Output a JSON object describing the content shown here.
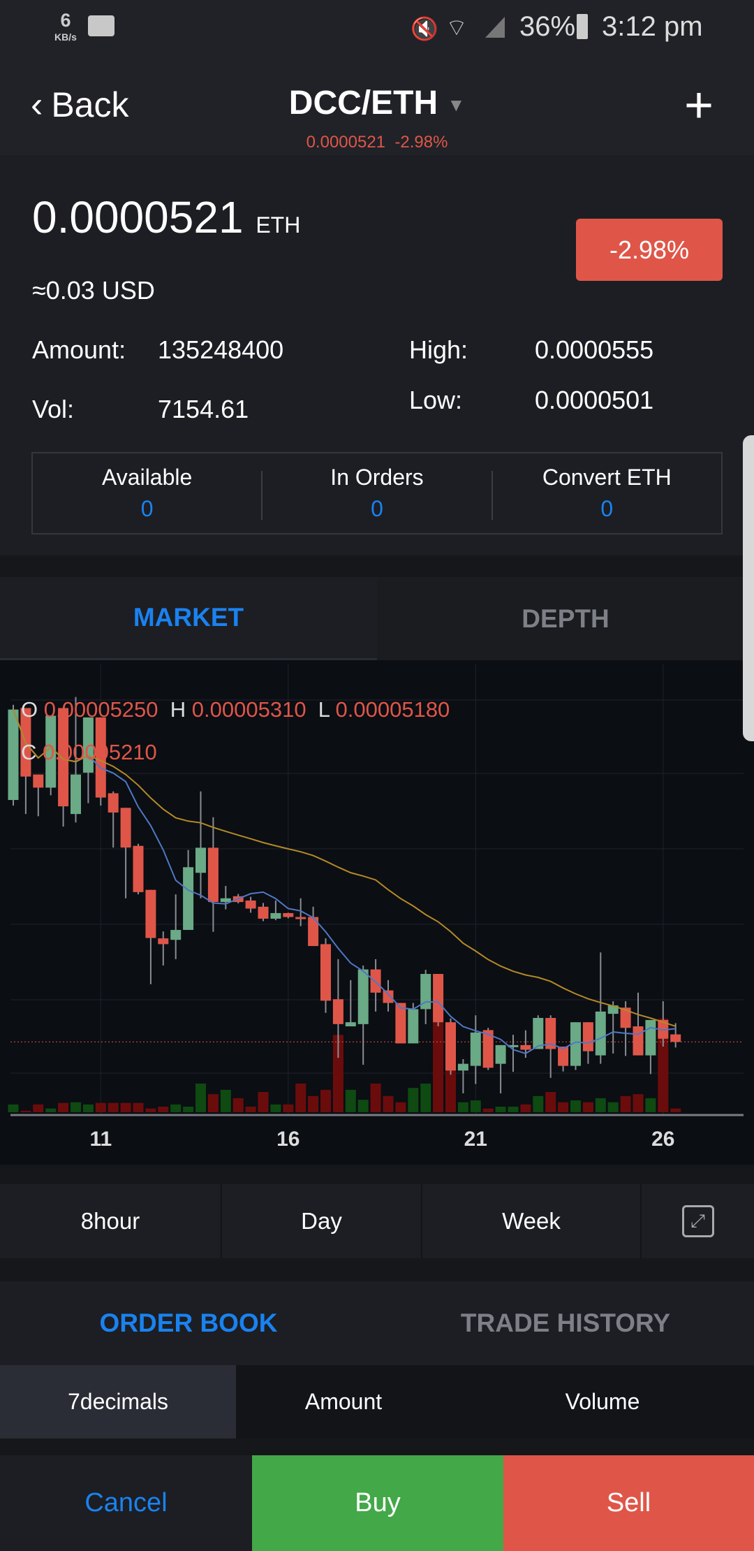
{
  "status_bar": {
    "net_speed": "6",
    "net_unit": "KB/s",
    "battery": "36%",
    "time": "3:12 pm",
    "icons": [
      "message-icon",
      "mute-icon",
      "wifi-icon",
      "signal-icon",
      "battery-icon"
    ]
  },
  "nav": {
    "back_label": "Back",
    "pair": "DCC/ETH",
    "sub_price": "0.0000521",
    "sub_change": "-2.98%"
  },
  "ticker": {
    "price": "0.0000521",
    "unit": "ETH",
    "usd": "≈0.03 USD",
    "change": "-2.98%",
    "amount_label": "Amount:",
    "amount": "135248400",
    "vol_label": "Vol:",
    "vol": "7154.61",
    "high_label": "High:",
    "high": "0.0000555",
    "low_label": "Low:",
    "low": "0.0000501"
  },
  "balances": [
    {
      "label": "Available",
      "value": "0"
    },
    {
      "label": "In Orders",
      "value": "0"
    },
    {
      "label": "Convert ETH",
      "value": "0"
    }
  ],
  "chart_tabs": [
    {
      "label": "MARKET",
      "active": true
    },
    {
      "label": "DEPTH",
      "active": false
    }
  ],
  "ohlc": {
    "o_label": "O",
    "o": "0.00005250",
    "h_label": "H",
    "h": "0.00005310",
    "l_label": "L",
    "l": "0.00005180",
    "c_label": "C",
    "c": "0.00005210"
  },
  "chart_data": {
    "type": "candlestick",
    "interval": "8hour",
    "x_ticks": [
      {
        "label": "11",
        "candle_index": 7
      },
      {
        "label": "16",
        "candle_index": 22
      },
      {
        "label": "21",
        "candle_index": 37
      },
      {
        "label": "26",
        "candle_index": 52
      }
    ],
    "last_price": 5.21e-05,
    "moving_averages": [
      {
        "period": 7,
        "color": "#4f78c4"
      },
      {
        "period": 30,
        "color": "#b48a26"
      }
    ],
    "colors": {
      "up": "#6aaa86",
      "down": "#df5649",
      "vol_up": "#0e4a12",
      "vol_down": "#6b0c0c"
    },
    "candles": [
      [
        6.502e-05,
        7.01e-05,
        6.472e-05,
        6.985e-05
      ],
      [
        6.993e-05,
        6.993e-05,
        6.427e-05,
        6.627e-05
      ],
      [
        6.638e-05,
        6.638e-05,
        6.415e-05,
        6.568e-05
      ],
      [
        6.568e-05,
        6.952e-05,
        6.527e-05,
        6.952e-05
      ],
      [
        6.993e-05,
        6.993e-05,
        6.36e-05,
        6.468e-05
      ],
      [
        6.427e-05,
        7.052e-05,
        6.382e-05,
        6.638e-05
      ],
      [
        6.648e-05,
        6.943e-05,
        6.485e-05,
        6.943e-05
      ],
      [
        6.943e-05,
        6.943e-05,
        6.472e-05,
        6.515e-05
      ],
      [
        6.538e-05,
        6.548e-05,
        6.248e-05,
        6.435e-05
      ],
      [
        6.46e-05,
        6.46e-05,
        5.977e-05,
        6.248e-05
      ],
      [
        6.257e-05,
        6.268e-05,
        5.998e-05,
        6.01e-05
      ],
      [
        6.022e-05,
        6.022e-05,
        5.518e-05,
        5.765e-05
      ],
      [
        5.763e-05,
        5.8e-05,
        5.618e-05,
        5.732e-05
      ],
      [
        5.755e-05,
        5.998e-05,
        5.652e-05,
        5.808e-05
      ],
      [
        5.808e-05,
        6.235e-05,
        5.808e-05,
        6.143e-05
      ],
      [
        6.113e-05,
        6.548e-05,
        5.977e-05,
        6.247e-05
      ],
      [
        6.247e-05,
        6.41e-05,
        5.798e-05,
        5.957e-05
      ],
      [
        5.957e-05,
        6.043e-05,
        5.918e-05,
        5.977e-05
      ],
      [
        5.988e-05,
        6e-05,
        5.95e-05,
        5.957e-05
      ],
      [
        5.965e-05,
        5.985e-05,
        5.9e-05,
        5.922e-05
      ],
      [
        5.932e-05,
        5.952e-05,
        5.855e-05,
        5.868e-05
      ],
      [
        5.868e-05,
        5.965e-05,
        5.86e-05,
        5.898e-05
      ],
      [
        5.898e-05,
        5.9e-05,
        5.87e-05,
        5.877e-05
      ],
      [
        5.877e-05,
        5.977e-05,
        5.828e-05,
        5.868e-05
      ],
      [
        5.877e-05,
        5.932e-05,
        5.722e-05,
        5.722e-05
      ],
      [
        5.732e-05,
        5.763e-05,
        5.365e-05,
        5.43e-05
      ],
      [
        5.438e-05,
        5.652e-05,
        5.125e-05,
        5.305e-05
      ],
      [
        5.293e-05,
        5.54e-05,
        5.293e-05,
        5.315e-05
      ],
      [
        5.305e-05,
        5.618e-05,
        5.088e-05,
        5.597e-05
      ],
      [
        5.597e-05,
        5.652e-05,
        5.372e-05,
        5.473e-05
      ],
      [
        5.485e-05,
        5.54e-05,
        5.372e-05,
        5.418e-05
      ],
      [
        5.418e-05,
        5.418e-05,
        5.202e-05,
        5.202e-05
      ],
      [
        5.202e-05,
        5.418e-05,
        5.202e-05,
        5.385e-05
      ],
      [
        5.385e-05,
        5.595e-05,
        5.305e-05,
        5.573e-05
      ],
      [
        5.573e-05,
        5.573e-05,
        5.293e-05,
        5.315e-05
      ],
      [
        5.315e-05,
        5.335e-05,
        5.035e-05,
        5.057e-05
      ],
      [
        5.057e-05,
        5.118e-05,
        4.935e-05,
        5.093e-05
      ],
      [
        5.082e-05,
        5.352e-05,
        4.985e-05,
        5.26e-05
      ],
      [
        5.273e-05,
        5.285e-05,
        5.06e-05,
        5.072e-05
      ],
      [
        5.093e-05,
        5.193e-05,
        4.935e-05,
        5.193e-05
      ],
      [
        5.182e-05,
        5.248e-05,
        5.05e-05,
        5.193e-05
      ],
      [
        5.193e-05,
        5.272e-05,
        5.125e-05,
        5.168e-05
      ],
      [
        5.172e-05,
        5.352e-05,
        5.172e-05,
        5.338e-05
      ],
      [
        5.338e-05,
        5.352e-05,
        5.018e-05,
        5.172e-05
      ],
      [
        5.185e-05,
        5.185e-05,
        5.052e-05,
        5.082e-05
      ],
      [
        5.082e-05,
        5.315e-05,
        5.06e-05,
        5.315e-05
      ],
      [
        5.315e-05,
        5.315e-05,
        5.093e-05,
        5.16e-05
      ],
      [
        5.138e-05,
        5.688e-05,
        5.093e-05,
        5.372e-05
      ],
      [
        5.36e-05,
        5.427e-05,
        5.148e-05,
        5.405e-05
      ],
      [
        5.393e-05,
        5.427e-05,
        5.135e-05,
        5.285e-05
      ],
      [
        5.293e-05,
        5.473e-05,
        5.138e-05,
        5.138e-05
      ],
      [
        5.138e-05,
        5.327e-05,
        5.038e-05,
        5.327e-05
      ],
      [
        5.327e-05,
        5.427e-05,
        5.185e-05,
        5.227e-05
      ],
      [
        5.25e-05,
        5.31e-05,
        5.18e-05,
        5.21e-05
      ]
    ],
    "volumes": [
      25,
      5,
      25,
      12,
      30,
      32,
      25,
      30,
      30,
      30,
      30,
      12,
      18,
      25,
      18,
      92,
      58,
      72,
      45,
      18,
      65,
      25,
      25,
      92,
      52,
      72,
      248,
      72,
      40,
      92,
      52,
      32,
      78,
      92,
      340,
      180,
      32,
      38,
      12,
      18,
      18,
      25,
      52,
      65,
      32,
      38,
      32,
      45,
      32,
      52,
      58,
      45,
      300,
      12
    ]
  },
  "intervals": [
    {
      "label": "8hour"
    },
    {
      "label": "Day"
    },
    {
      "label": "Week"
    }
  ],
  "book_tabs": [
    {
      "label": "ORDER BOOK",
      "active": true
    },
    {
      "label": "TRADE HISTORY",
      "active": false
    }
  ],
  "book_columns": [
    {
      "label": "7decimals"
    },
    {
      "label": "Amount"
    },
    {
      "label": "Volume"
    }
  ],
  "actions": {
    "cancel": "Cancel",
    "buy": "Buy",
    "sell": "Sell"
  },
  "colors": {
    "red": "#df5649",
    "green": "#43a848",
    "blue": "#1a82f0"
  }
}
